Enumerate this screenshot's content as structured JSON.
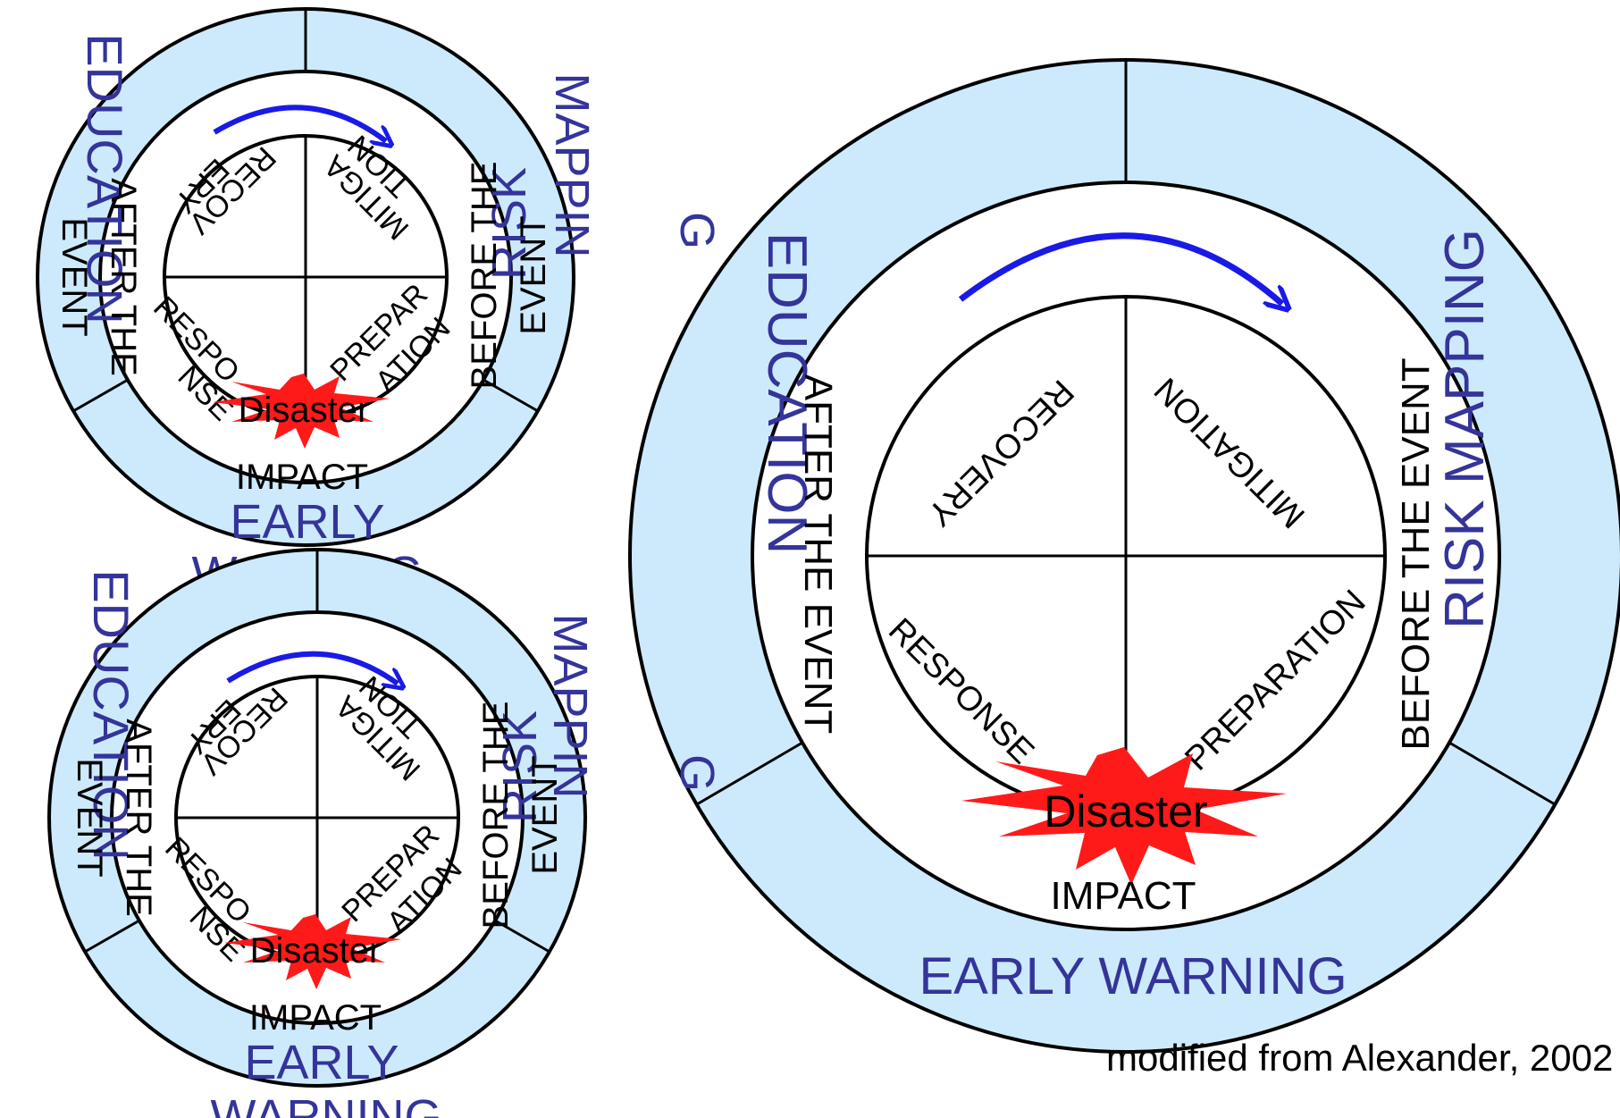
{
  "colors": {
    "ring": "#cdeafc",
    "line": "#000000",
    "arrow": "#1a1ae6",
    "burst": "#ff1a1a",
    "outer_text": "#34349a"
  },
  "diagram": {
    "outer_ring": {
      "education": "EDUCATION",
      "risk_mapping": "RISK MAPPING",
      "early_warning": "EARLY WARNING"
    },
    "middle_ring": {
      "after": "AFTER THE EVENT",
      "before": "BEFORE THE EVENT"
    },
    "quadrants": {
      "recovery": "RECOVERY",
      "mitigation": "MITIGATION",
      "response": "RESPONSE",
      "preparation": "PREPARATION"
    },
    "burst_label": "Disaster",
    "impact": "IMPACT"
  },
  "small_copies": {
    "education": "EDUCATION",
    "risk": "RISK",
    "mappin": "MAPPIN",
    "g": "G",
    "after_line1": "AFTER THE",
    "after_line2": "EVENT",
    "before_line1": "BEFORE THE",
    "before_line2": "EVENT",
    "recov": "RECOV",
    "ery": "ERY",
    "mitiga": "MITIGA",
    "tion": "TION",
    "respo": "RESPO",
    "nse": "NSE",
    "prepar": "PREPAR",
    "ation": "ATION",
    "burst_label": "Disaster",
    "impact": "IMPACT",
    "early": "EARLY",
    "warning": "WARNING"
  },
  "credit": "modified from Alexander, 2002"
}
